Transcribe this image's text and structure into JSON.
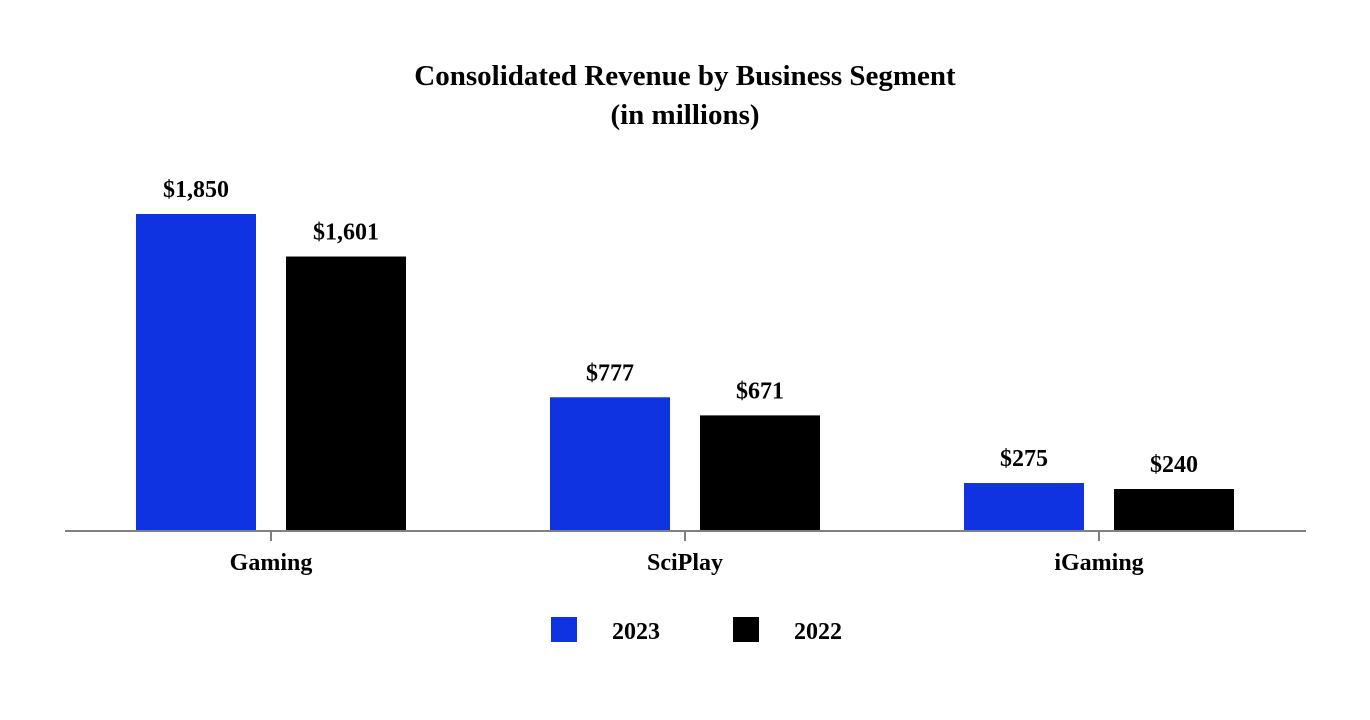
{
  "chart_data": {
    "type": "bar",
    "title": "Consolidated Revenue by Business Segment",
    "subtitle": "(in millions)",
    "categories": [
      "Gaming",
      "SciPlay",
      "iGaming"
    ],
    "series": [
      {
        "name": "2023",
        "color": "#0f33e0",
        "values": [
          1850,
          777,
          275
        ],
        "labels": [
          "$1,850",
          "$777",
          "$275"
        ]
      },
      {
        "name": "2022",
        "color": "#000000",
        "values": [
          1601,
          671,
          240
        ],
        "labels": [
          "$1,601",
          "$671",
          "$240"
        ]
      }
    ],
    "xlabel": "",
    "ylabel": "",
    "ylim": [
      0,
      2000
    ],
    "grid": false,
    "legend_position": "bottom-center"
  }
}
